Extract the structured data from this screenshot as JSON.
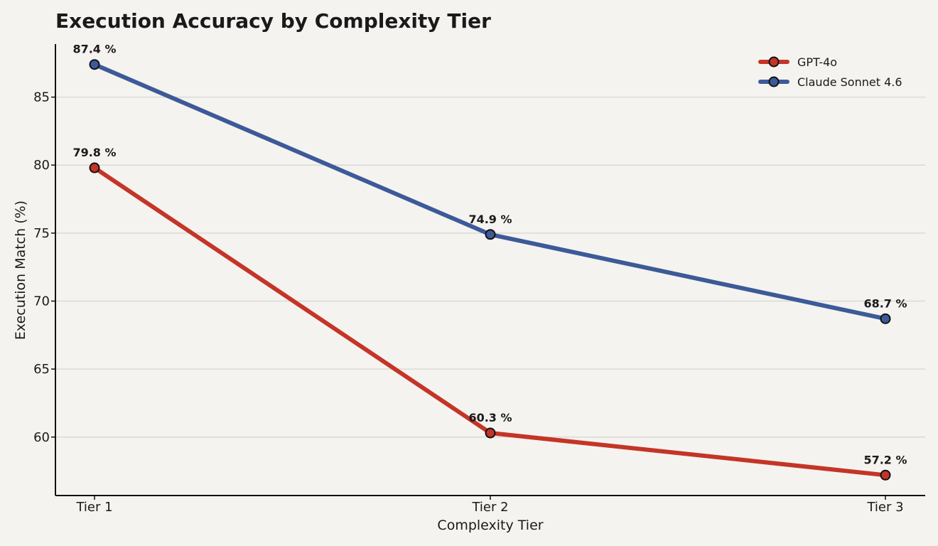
{
  "chart_data": {
    "type": "line",
    "title": "Execution Accuracy by Complexity Tier",
    "xlabel": "Complexity Tier",
    "ylabel": "Execution Match (%)",
    "categories": [
      "Tier 1",
      "Tier 2",
      "Tier 3"
    ],
    "ylim": [
      55.7,
      88.9
    ],
    "yticks": [
      60,
      65,
      70,
      75,
      80,
      85
    ],
    "grid": "horizontal",
    "legend_position": "top-right",
    "series": [
      {
        "name": "GPT-4o",
        "values": [
          79.8,
          60.3,
          57.2
        ],
        "labels": [
          "79.8 %",
          "60.3 %",
          "57.2 %"
        ],
        "color": "#c43527"
      },
      {
        "name": "Claude Sonnet 4.6",
        "values": [
          87.4,
          74.9,
          68.7
        ],
        "labels": [
          "87.4 %",
          "74.9 %",
          "68.7 %"
        ],
        "color": "#3d5a98"
      }
    ],
    "colors": {
      "background": "#f5f3f0",
      "marker_edge": "#111111",
      "grid": "#dcdad6"
    }
  }
}
